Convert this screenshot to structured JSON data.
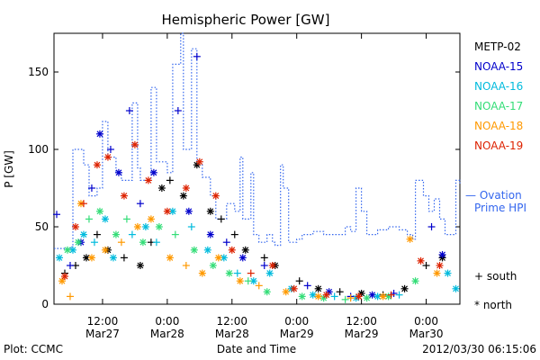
{
  "chart_data": {
    "type": "scatter",
    "title": "Hemispheric Power [GW]",
    "ylabel": "P [GW]",
    "xlabel": "Date and Time",
    "ylim": [
      0,
      175
    ],
    "y_ticks": [
      0,
      50,
      100,
      150
    ],
    "x_ticks": [
      {
        "time": "2012-03-27T12:00",
        "line1": "12:00",
        "line2": "Mar27"
      },
      {
        "time": "2012-03-28T00:00",
        "line1": "0:00",
        "line2": "Mar28"
      },
      {
        "time": "2012-03-28T12:00",
        "line1": "12:00",
        "line2": "Mar28"
      },
      {
        "time": "2012-03-29T00:00",
        "line1": "0:00",
        "line2": "Mar29"
      },
      {
        "time": "2012-03-29T12:00",
        "line1": "12:00",
        "line2": "Mar29"
      },
      {
        "time": "2012-03-30T00:00",
        "line1": "0:00",
        "line2": "Mar30"
      }
    ],
    "xlim": [
      "2012-03-27T03:00",
      "2012-03-30T06:15"
    ],
    "legend": [
      {
        "name": "METP-02",
        "color": "#000000"
      },
      {
        "name": "NOAA-15",
        "color": "#0000cc"
      },
      {
        "name": "NOAA-16",
        "color": "#00bbdd"
      },
      {
        "name": "NOAA-17",
        "color": "#33dd77"
      },
      {
        "name": "NOAA-18",
        "color": "#ff9900"
      },
      {
        "name": "NOAA-19",
        "color": "#dd2200"
      }
    ],
    "ovation_label_1": "— Ovation",
    "ovation_label_2": "Prime HPI",
    "marker_south": "+ south",
    "marker_north": "* north",
    "footer_left": "Plot: CCMC",
    "footer_right": "2012/03/30 06:15:06",
    "ovation_color": "#3366ee",
    "ovation_series": [
      [
        "2012-03-27T03:00",
        36
      ],
      [
        "2012-03-27T06:00",
        37
      ],
      [
        "2012-03-27T06:30",
        100
      ],
      [
        "2012-03-27T08:30",
        90
      ],
      [
        "2012-03-27T09:30",
        70
      ],
      [
        "2012-03-27T11:00",
        75
      ],
      [
        "2012-03-27T12:00",
        118
      ],
      [
        "2012-03-27T13:00",
        95
      ],
      [
        "2012-03-27T14:30",
        85
      ],
      [
        "2012-03-27T15:30",
        80
      ],
      [
        "2012-03-27T17:30",
        130
      ],
      [
        "2012-03-27T18:30",
        88
      ],
      [
        "2012-03-27T19:00",
        80
      ],
      [
        "2012-03-27T21:00",
        140
      ],
      [
        "2012-03-27T22:00",
        92
      ],
      [
        "2012-03-28T00:00",
        85
      ],
      [
        "2012-03-28T01:00",
        155
      ],
      [
        "2012-03-28T02:30",
        175
      ],
      [
        "2012-03-28T03:00",
        100
      ],
      [
        "2012-03-28T04:30",
        165
      ],
      [
        "2012-03-28T05:30",
        90
      ],
      [
        "2012-03-28T06:30",
        82
      ],
      [
        "2012-03-28T08:00",
        70
      ],
      [
        "2012-03-28T09:00",
        55
      ],
      [
        "2012-03-28T11:00",
        65
      ],
      [
        "2012-03-28T12:30",
        60
      ],
      [
        "2012-03-28T13:30",
        95
      ],
      [
        "2012-03-28T14:00",
        55
      ],
      [
        "2012-03-28T15:30",
        85
      ],
      [
        "2012-03-28T16:00",
        45
      ],
      [
        "2012-03-28T17:00",
        40
      ],
      [
        "2012-03-28T18:30",
        45
      ],
      [
        "2012-03-28T19:30",
        40
      ],
      [
        "2012-03-28T20:00",
        38
      ],
      [
        "2012-03-28T21:00",
        90
      ],
      [
        "2012-03-28T21:30",
        75
      ],
      [
        "2012-03-28T22:30",
        40
      ],
      [
        "2012-03-29T00:00",
        42
      ],
      [
        "2012-03-29T01:00",
        45
      ],
      [
        "2012-03-29T03:00",
        47
      ],
      [
        "2012-03-29T05:00",
        45
      ],
      [
        "2012-03-29T07:00",
        45
      ],
      [
        "2012-03-29T09:00",
        50
      ],
      [
        "2012-03-29T10:00",
        47
      ],
      [
        "2012-03-29T11:00",
        75
      ],
      [
        "2012-03-29T12:00",
        60
      ],
      [
        "2012-03-29T13:00",
        45
      ],
      [
        "2012-03-29T15:00",
        48
      ],
      [
        "2012-03-29T17:00",
        50
      ],
      [
        "2012-03-29T19:00",
        48
      ],
      [
        "2012-03-29T20:30",
        45
      ],
      [
        "2012-03-29T21:30",
        42
      ],
      [
        "2012-03-29T22:00",
        80
      ],
      [
        "2012-03-29T23:30",
        70
      ],
      [
        "2012-03-30T00:30",
        60
      ],
      [
        "2012-03-30T01:30",
        68
      ],
      [
        "2012-03-30T02:30",
        55
      ],
      [
        "2012-03-30T03:30",
        45
      ],
      [
        "2012-03-30T04:30",
        45
      ],
      [
        "2012-03-30T05:30",
        80
      ],
      [
        "2012-03-30T06:15",
        78
      ]
    ],
    "series": [
      {
        "name": "METP-02",
        "color": "#000000",
        "points": [
          [
            "2012-03-27T05:00",
            20,
            "s"
          ],
          [
            "2012-03-27T07:00",
            25,
            "s"
          ],
          [
            "2012-03-27T09:00",
            30,
            "n"
          ],
          [
            "2012-03-27T11:00",
            45,
            "s"
          ],
          [
            "2012-03-27T13:00",
            35,
            "n"
          ],
          [
            "2012-03-27T16:00",
            30,
            "s"
          ],
          [
            "2012-03-27T19:00",
            25,
            "n"
          ],
          [
            "2012-03-27T21:00",
            40,
            "s"
          ],
          [
            "2012-03-27T23:00",
            75,
            "n"
          ],
          [
            "2012-03-28T00:30",
            80,
            "s"
          ],
          [
            "2012-03-28T03:00",
            70,
            "n"
          ],
          [
            "2012-03-28T05:30",
            90,
            "n"
          ],
          [
            "2012-03-28T08:00",
            60,
            "n"
          ],
          [
            "2012-03-28T10:00",
            55,
            "s"
          ],
          [
            "2012-03-28T12:30",
            45,
            "s"
          ],
          [
            "2012-03-28T14:30",
            35,
            "n"
          ],
          [
            "2012-03-28T18:00",
            30,
            "s"
          ],
          [
            "2012-03-28T20:00",
            25,
            "n"
          ],
          [
            "2012-03-29T00:30",
            15,
            "s"
          ],
          [
            "2012-03-29T04:00",
            10,
            "n"
          ],
          [
            "2012-03-29T08:00",
            8,
            "s"
          ],
          [
            "2012-03-29T12:00",
            7,
            "n"
          ],
          [
            "2012-03-29T16:00",
            6,
            "s"
          ],
          [
            "2012-03-29T20:00",
            10,
            "n"
          ],
          [
            "2012-03-30T00:00",
            25,
            "s"
          ],
          [
            "2012-03-30T03:00",
            30,
            "n"
          ]
        ]
      },
      {
        "name": "NOAA-15",
        "color": "#0000cc",
        "points": [
          [
            "2012-03-27T03:30",
            58,
            "s"
          ],
          [
            "2012-03-27T06:00",
            25,
            "s"
          ],
          [
            "2012-03-27T08:00",
            40,
            "n"
          ],
          [
            "2012-03-27T10:00",
            75,
            "s"
          ],
          [
            "2012-03-27T11:30",
            110,
            "n"
          ],
          [
            "2012-03-27T13:30",
            100,
            "s"
          ],
          [
            "2012-03-27T15:00",
            85,
            "n"
          ],
          [
            "2012-03-27T17:00",
            125,
            "s"
          ],
          [
            "2012-03-27T19:00",
            65,
            "s"
          ],
          [
            "2012-03-27T21:30",
            85,
            "n"
          ],
          [
            "2012-03-28T02:00",
            125,
            "s"
          ],
          [
            "2012-03-28T04:00",
            60,
            "n"
          ],
          [
            "2012-03-28T05:30",
            160,
            "s"
          ],
          [
            "2012-03-28T08:00",
            45,
            "n"
          ],
          [
            "2012-03-28T11:00",
            40,
            "s"
          ],
          [
            "2012-03-28T14:00",
            30,
            "n"
          ],
          [
            "2012-03-28T18:00",
            25,
            "s"
          ],
          [
            "2012-03-29T02:00",
            12,
            "s"
          ],
          [
            "2012-03-29T06:00",
            8,
            "n"
          ],
          [
            "2012-03-29T10:00",
            5,
            "s"
          ],
          [
            "2012-03-29T14:00",
            6,
            "n"
          ],
          [
            "2012-03-29T18:00",
            7,
            "s"
          ],
          [
            "2012-03-30T01:00",
            50,
            "s"
          ],
          [
            "2012-03-30T03:00",
            32,
            "n"
          ]
        ]
      },
      {
        "name": "NOAA-16",
        "color": "#00bbdd",
        "points": [
          [
            "2012-03-27T04:00",
            30,
            "n"
          ],
          [
            "2012-03-27T06:30",
            35,
            "n"
          ],
          [
            "2012-03-27T08:30",
            45,
            "n"
          ],
          [
            "2012-03-27T10:30",
            40,
            "s"
          ],
          [
            "2012-03-27T12:30",
            55,
            "n"
          ],
          [
            "2012-03-27T14:00",
            30,
            "n"
          ],
          [
            "2012-03-27T17:30",
            45,
            "s"
          ],
          [
            "2012-03-27T20:00",
            50,
            "n"
          ],
          [
            "2012-03-27T22:00",
            40,
            "s"
          ],
          [
            "2012-03-28T01:00",
            60,
            "n"
          ],
          [
            "2012-03-28T04:30",
            50,
            "s"
          ],
          [
            "2012-03-28T07:30",
            35,
            "n"
          ],
          [
            "2012-03-28T10:30",
            30,
            "n"
          ],
          [
            "2012-03-28T13:00",
            20,
            "s"
          ],
          [
            "2012-03-28T16:00",
            15,
            "n"
          ],
          [
            "2012-03-28T19:00",
            20,
            "n"
          ],
          [
            "2012-03-28T23:00",
            10,
            "n"
          ],
          [
            "2012-03-29T03:00",
            6,
            "n"
          ],
          [
            "2012-03-29T07:00",
            5,
            "s"
          ],
          [
            "2012-03-29T11:00",
            4,
            "n"
          ],
          [
            "2012-03-29T15:00",
            5,
            "n"
          ],
          [
            "2012-03-29T19:00",
            6,
            "s"
          ],
          [
            "2012-03-30T04:00",
            20,
            "n"
          ],
          [
            "2012-03-30T05:30",
            10,
            "n"
          ]
        ]
      },
      {
        "name": "NOAA-17",
        "color": "#33dd77",
        "points": [
          [
            "2012-03-27T05:30",
            35,
            "n"
          ],
          [
            "2012-03-27T07:30",
            40,
            "n"
          ],
          [
            "2012-03-27T09:30",
            55,
            "s"
          ],
          [
            "2012-03-27T11:30",
            60,
            "n"
          ],
          [
            "2012-03-27T14:30",
            45,
            "n"
          ],
          [
            "2012-03-27T16:30",
            55,
            "s"
          ],
          [
            "2012-03-27T19:30",
            40,
            "n"
          ],
          [
            "2012-03-27T22:30",
            50,
            "n"
          ],
          [
            "2012-03-28T01:30",
            45,
            "s"
          ],
          [
            "2012-03-28T05:00",
            35,
            "n"
          ],
          [
            "2012-03-28T08:30",
            25,
            "n"
          ],
          [
            "2012-03-28T11:30",
            20,
            "n"
          ],
          [
            "2012-03-28T15:00",
            15,
            "s"
          ],
          [
            "2012-03-28T18:30",
            8,
            "n"
          ],
          [
            "2012-03-29T01:00",
            5,
            "n"
          ],
          [
            "2012-03-29T05:00",
            4,
            "n"
          ],
          [
            "2012-03-29T09:00",
            3,
            "s"
          ],
          [
            "2012-03-29T13:00",
            4,
            "n"
          ],
          [
            "2012-03-29T17:00",
            5,
            "n"
          ],
          [
            "2012-03-29T22:00",
            15,
            "n"
          ]
        ]
      },
      {
        "name": "NOAA-18",
        "color": "#ff9900",
        "points": [
          [
            "2012-03-27T04:30",
            15,
            "n"
          ],
          [
            "2012-03-27T06:00",
            5,
            "s"
          ],
          [
            "2012-03-27T08:00",
            65,
            "n"
          ],
          [
            "2012-03-27T10:00",
            30,
            "n"
          ],
          [
            "2012-03-27T12:30",
            35,
            "n"
          ],
          [
            "2012-03-27T15:30",
            40,
            "s"
          ],
          [
            "2012-03-27T18:30",
            50,
            "n"
          ],
          [
            "2012-03-27T21:00",
            55,
            "n"
          ],
          [
            "2012-03-28T00:30",
            30,
            "n"
          ],
          [
            "2012-03-28T03:30",
            25,
            "s"
          ],
          [
            "2012-03-28T06:30",
            20,
            "n"
          ],
          [
            "2012-03-28T09:30",
            30,
            "n"
          ],
          [
            "2012-03-28T13:30",
            15,
            "n"
          ],
          [
            "2012-03-28T17:00",
            12,
            "s"
          ],
          [
            "2012-03-28T22:00",
            8,
            "n"
          ],
          [
            "2012-03-29T04:00",
            5,
            "n"
          ],
          [
            "2012-03-29T10:00",
            4,
            "s"
          ],
          [
            "2012-03-29T16:00",
            5,
            "n"
          ],
          [
            "2012-03-29T21:00",
            42,
            "n"
          ],
          [
            "2012-03-30T02:00",
            20,
            "n"
          ]
        ]
      },
      {
        "name": "NOAA-19",
        "color": "#dd2200",
        "points": [
          [
            "2012-03-27T05:00",
            18,
            "n"
          ],
          [
            "2012-03-27T07:00",
            50,
            "n"
          ],
          [
            "2012-03-27T08:30",
            65,
            "s"
          ],
          [
            "2012-03-27T11:00",
            90,
            "n"
          ],
          [
            "2012-03-27T13:00",
            95,
            "n"
          ],
          [
            "2012-03-27T16:00",
            70,
            "n"
          ],
          [
            "2012-03-27T18:00",
            103,
            "n"
          ],
          [
            "2012-03-27T20:30",
            80,
            "n"
          ],
          [
            "2012-03-28T00:00",
            60,
            "n"
          ],
          [
            "2012-03-28T03:30",
            75,
            "n"
          ],
          [
            "2012-03-28T06:00",
            92,
            "n"
          ],
          [
            "2012-03-28T09:00",
            70,
            "n"
          ],
          [
            "2012-03-28T12:00",
            35,
            "n"
          ],
          [
            "2012-03-28T15:30",
            20,
            "s"
          ],
          [
            "2012-03-28T19:30",
            25,
            "n"
          ],
          [
            "2012-03-28T23:30",
            10,
            "n"
          ],
          [
            "2012-03-29T05:30",
            6,
            "n"
          ],
          [
            "2012-03-29T11:30",
            5,
            "n"
          ],
          [
            "2012-03-29T17:30",
            6,
            "s"
          ],
          [
            "2012-03-29T23:00",
            28,
            "n"
          ],
          [
            "2012-03-30T02:30",
            25,
            "n"
          ]
        ]
      }
    ]
  }
}
